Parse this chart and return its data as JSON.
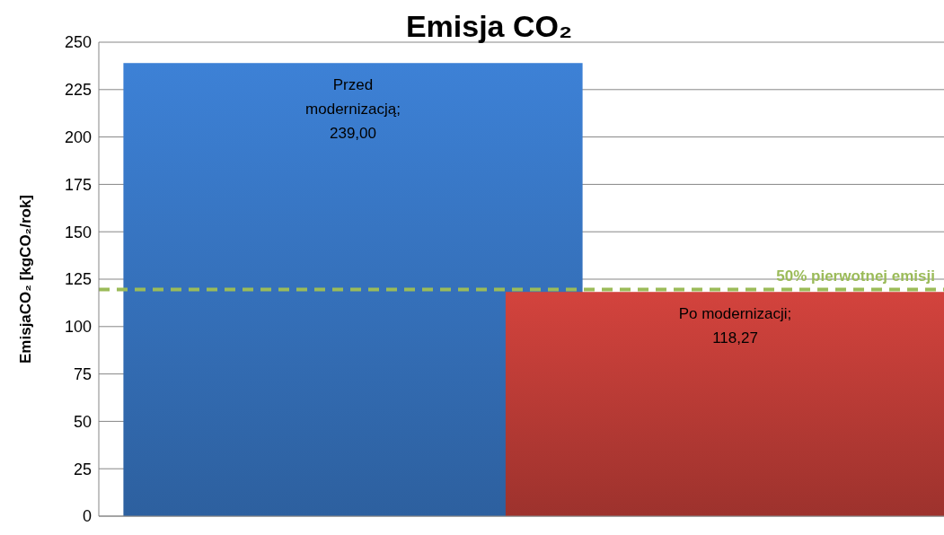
{
  "chart_data": {
    "type": "bar",
    "title": "Emisja CO₂",
    "ylabel": "EmisjaCO₂ [kgCO₂/rok]",
    "categories": [
      null,
      null
    ],
    "values": [
      239,
      118.27
    ],
    "colors": [
      "#3a7bcc",
      "#c9403a"
    ],
    "value_labels": [
      "Przed modernizacją; 239,00",
      "Po modernizacji; 118,27"
    ],
    "ylim": [
      0,
      250
    ],
    "yticks": [
      0,
      25,
      50,
      75,
      100,
      125,
      150,
      175,
      200,
      225,
      250
    ],
    "grid": "y",
    "ref_lines": [
      {
        "axis": "y",
        "value": 119.5,
        "label": "50% pierwotnej emisji",
        "color": "#9bbb59",
        "line_style": "dashed"
      }
    ]
  }
}
